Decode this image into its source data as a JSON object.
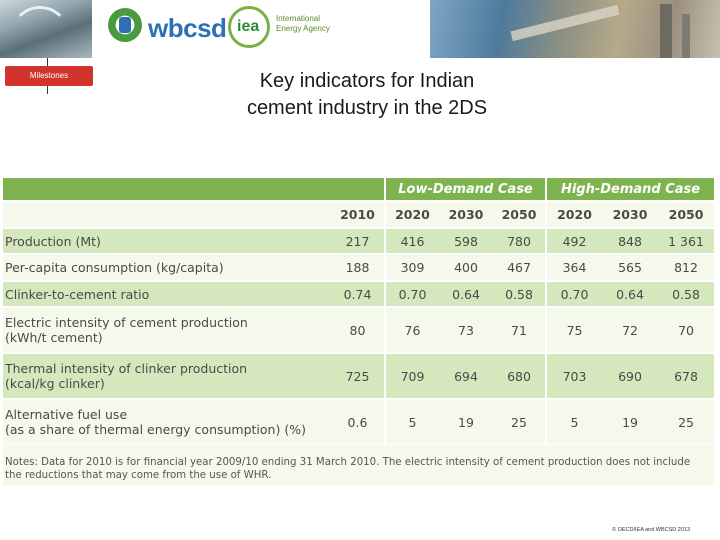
{
  "header": {
    "wbcsd_logo_text": "wbcsd",
    "iea_logo_text": "iea",
    "iea_name": [
      "International",
      "Energy Agency"
    ]
  },
  "milestones_label": "Milestones",
  "title_lines": [
    "Key indicators for Indian",
    "cement industry in the 2DS"
  ],
  "table": {
    "case_headers": [
      "Low-Demand Case",
      "High-Demand Case"
    ],
    "years": [
      "2010",
      "2020",
      "2030",
      "2050",
      "2020",
      "2030",
      "2050"
    ],
    "rows": [
      {
        "label": [
          "Production (Mt)"
        ],
        "values": [
          "217",
          "416",
          "598",
          "780",
          "492",
          "848",
          "1 361"
        ],
        "shade": "green"
      },
      {
        "label": [
          "Per-capita consumption (kg/capita)"
        ],
        "values": [
          "188",
          "309",
          "400",
          "467",
          "364",
          "565",
          "812"
        ],
        "shade": "white"
      },
      {
        "label": [
          "Clinker-to-cement ratio"
        ],
        "values": [
          "0.74",
          "0.70",
          "0.64",
          "0.58",
          "0.70",
          "0.64",
          "0.58"
        ],
        "shade": "green"
      },
      {
        "label": [
          "Electric intensity of cement production",
          "(kWh/t cement)"
        ],
        "values": [
          "80",
          "76",
          "73",
          "71",
          "75",
          "72",
          "70"
        ],
        "shade": "white"
      },
      {
        "label": [
          "Thermal intensity of clinker production",
          "(kcal/kg clinker)"
        ],
        "values": [
          "725",
          "709",
          "694",
          "680",
          "703",
          "690",
          "678"
        ],
        "shade": "green"
      },
      {
        "label": [
          "Alternative fuel use",
          "(as a share of thermal energy consumption) (%)"
        ],
        "values": [
          "0.6",
          "5",
          "19",
          "25",
          "5",
          "19",
          "25"
        ],
        "shade": "white"
      }
    ]
  },
  "notes_lines": [
    "Notes: Data for 2010 is for financial year 2009/10 ending 31 March 2010. The electric intensity of cement production does not include",
    "the reductions that may come from the use of WHR."
  ],
  "copyright": "© OECD/IEA and WBCSD 2013",
  "colors": {
    "case_header": "#7fb350",
    "row_green": "#d5e7bd",
    "row_light": "#f4f9ec",
    "milestones": "#d0342c",
    "wbcsd_blue": "#2e6fb5"
  }
}
